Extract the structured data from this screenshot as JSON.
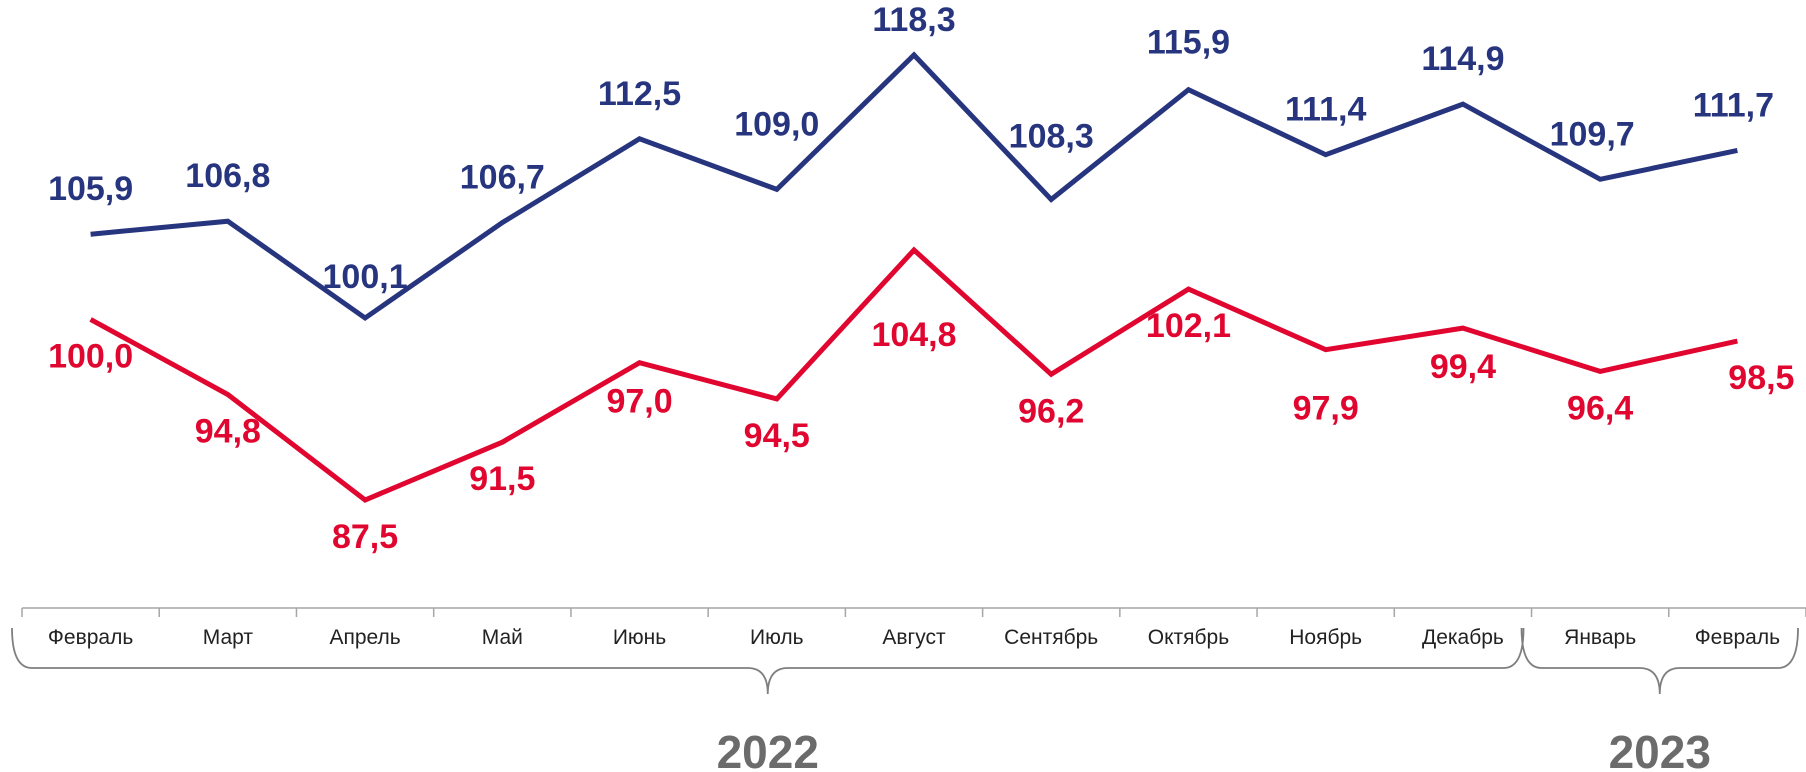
{
  "colors": {
    "series_top": "#27357f",
    "series_bottom": "#e0062f",
    "axis": "#a6a6a6",
    "year_text": "#6b6b6b"
  },
  "chart_data": {
    "type": "line",
    "categories": [
      "Февраль",
      "Март",
      "Апрель",
      "Май",
      "Июнь",
      "Июль",
      "Август",
      "Сентябрь",
      "Октябрь",
      "Ноябрь",
      "Декабрь",
      "Январь",
      "Февраль"
    ],
    "labels": {
      "top": [
        "105,9",
        "106,8",
        "100,1",
        "106,7",
        "112,5",
        "109,0",
        "118,3",
        "108,3",
        "115,9",
        "111,4",
        "114,9",
        "109,7",
        "111,7"
      ],
      "bottom": [
        "100,0",
        "94,8",
        "87,5",
        "91,5",
        "97,0",
        "94,5",
        "104,8",
        "96,2",
        "102,1",
        "97,9",
        "99,4",
        "96,4",
        "98,5"
      ]
    },
    "series": [
      {
        "values": [
          105.9,
          106.8,
          100.1,
          106.7,
          112.5,
          109.0,
          118.3,
          108.3,
          115.9,
          111.4,
          114.9,
          109.7,
          111.7
        ]
      },
      {
        "values": [
          100.0,
          94.8,
          87.5,
          91.5,
          97.0,
          94.5,
          104.8,
          96.2,
          102.1,
          97.9,
          99.4,
          96.4,
          98.5
        ]
      }
    ],
    "year_groups": [
      {
        "label": "2022",
        "from": 0,
        "to": 10
      },
      {
        "label": "2023",
        "from": 11,
        "to": 12
      }
    ],
    "ylim": [
      86,
      119
    ],
    "grid": false
  }
}
